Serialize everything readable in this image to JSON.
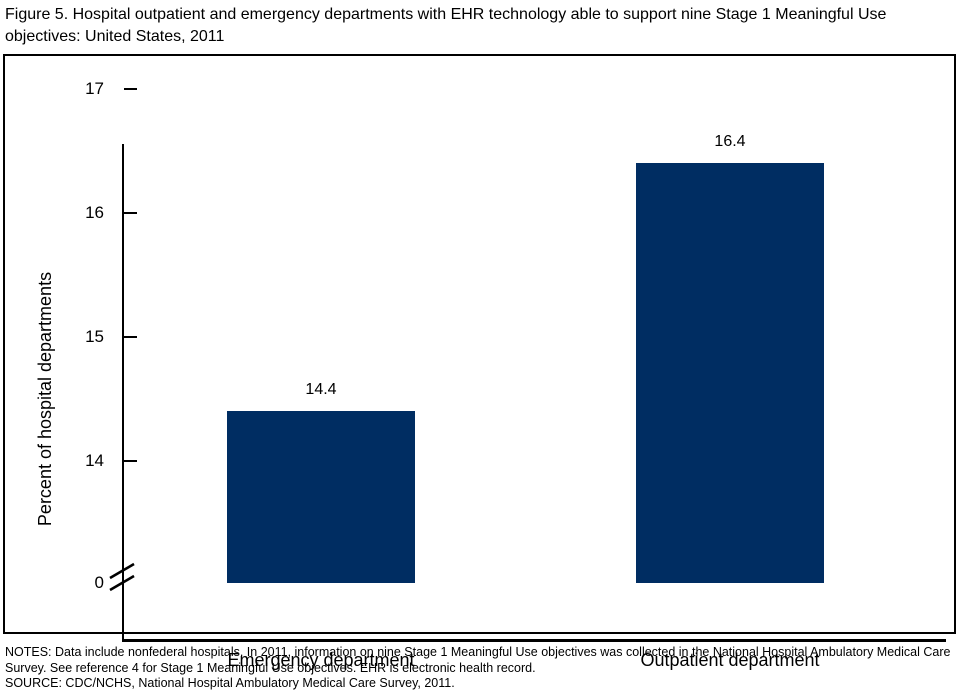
{
  "figure": {
    "title": "Figure 5. Hospital outpatient and emergency departments with EHR technology able to support nine Stage 1 Meaningful Use objectives: United States, 2011"
  },
  "chart_data": {
    "type": "bar",
    "categories": [
      "Emergency department",
      "Outpatient department"
    ],
    "values": [
      14.4,
      16.4
    ],
    "data_labels": [
      "14.4",
      "16.4"
    ],
    "title": "",
    "xlabel": "",
    "ylabel": "Percent of hospital departments",
    "yticks": [
      17,
      16,
      15,
      14,
      0
    ],
    "ylim": [
      0,
      17
    ],
    "axis_break_between": [
      0,
      14
    ],
    "grid": false,
    "legend": false,
    "bar_color": "#002d62"
  },
  "footnotes": {
    "notes": "NOTES: Data include nonfederal hospitals. In 2011, information on nine Stage 1 Meaningful Use objectives was collected in the National Hospital Ambulatory Medical Care Survey. See reference 4 for Stage 1 Meaningful Use objectives. EHR is electronic health record.",
    "source": "SOURCE: CDC/NCHS, National Hospital Ambulatory Medical Care Survey, 2011."
  }
}
